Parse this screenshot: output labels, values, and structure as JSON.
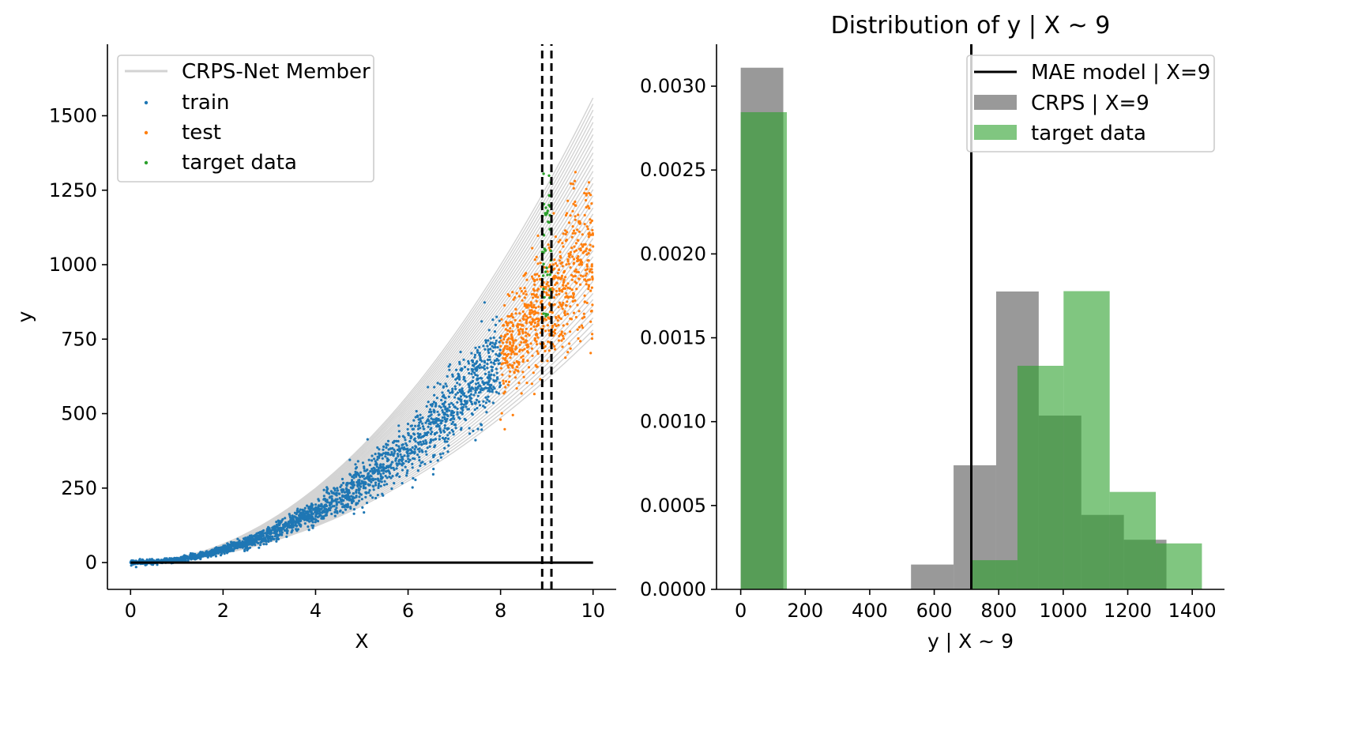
{
  "chart_data": [
    {
      "type": "scatter",
      "xlabel": "X",
      "ylabel": "y",
      "xlim": [
        -0.5,
        10.5
      ],
      "ylim": [
        -90,
        1740
      ],
      "xticks": [
        0,
        2,
        4,
        6,
        8,
        10
      ],
      "yticks": [
        0,
        250,
        500,
        750,
        1000,
        1250,
        1500
      ],
      "grid": false,
      "legend_placement": "upper left",
      "legend": [
        "CRPS-Net Member",
        "train",
        "test",
        "target data"
      ],
      "vlines": {
        "x": [
          8.9,
          9.1
        ],
        "style": "dashed",
        "color": "#000000"
      },
      "series": [
        {
          "name": "train",
          "color": "#1f77b4",
          "x_range": [
            0,
            8
          ],
          "trend": "y ≈ 10.7·x² with spread",
          "approx_points": 4000
        },
        {
          "name": "test",
          "color": "#ff7f0e",
          "x_range": [
            8,
            10
          ],
          "trend": "y ≈ 10.7·x² with spread",
          "approx_points": 1000
        },
        {
          "name": "target data",
          "color": "#2ca02c",
          "x_range": [
            8.9,
            9.1
          ],
          "y_range": [
            820,
            1320
          ]
        },
        {
          "name": "CRPS-Net Member",
          "color": "#d3d3d3",
          "x_range": [
            0,
            10
          ],
          "curve_count": 40,
          "y_at_10_range": [
            760,
            1560
          ]
        }
      ],
      "zero_line": {
        "color": "#000000",
        "y": 0
      }
    },
    {
      "type": "histogram",
      "title": "Distribution of y | X ~ 9",
      "xlabel": "y | X ~ 9",
      "ylabel": "",
      "xlim": [
        -75,
        1500
      ],
      "ylim": [
        0,
        0.00325
      ],
      "xticks": [
        0,
        200,
        400,
        600,
        800,
        1000,
        1200,
        1400
      ],
      "yticks": [
        "0.0000",
        "0.0005",
        "0.0010",
        "0.0015",
        "0.0020",
        "0.0025",
        "0.0030"
      ],
      "grid": false,
      "legend_placement": "upper right",
      "legend": [
        "MAE model | X=9",
        "CRPS | X=9",
        "target data"
      ],
      "vline": {
        "name": "MAE model | X=9",
        "x": 715,
        "color": "#000000"
      },
      "series": [
        {
          "name": "CRPS | X=9",
          "color": "#808080",
          "bins": [
            {
              "x0": 0,
              "x1": 132,
              "value": 0.00311
            },
            {
              "x0": 132,
              "x1": 264,
              "value": 0.0
            },
            {
              "x0": 264,
              "x1": 396,
              "value": 0.0
            },
            {
              "x0": 396,
              "x1": 528,
              "value": 0.0
            },
            {
              "x0": 528,
              "x1": 660,
              "value": 0.000148
            },
            {
              "x0": 660,
              "x1": 792,
              "value": 0.00074
            },
            {
              "x0": 792,
              "x1": 924,
              "value": 0.001776
            },
            {
              "x0": 924,
              "x1": 1056,
              "value": 0.001036
            },
            {
              "x0": 1056,
              "x1": 1188,
              "value": 0.000444
            },
            {
              "x0": 1188,
              "x1": 1320,
              "value": 0.000296
            }
          ]
        },
        {
          "name": "target data",
          "color": "#2ca02c",
          "bins": [
            {
              "x0": 0,
              "x1": 143,
              "value": 0.002845
            },
            {
              "x0": 143,
              "x1": 286,
              "value": 0.0
            },
            {
              "x0": 286,
              "x1": 429,
              "value": 0.0
            },
            {
              "x0": 429,
              "x1": 572,
              "value": 0.0
            },
            {
              "x0": 572,
              "x1": 715,
              "value": 0.0
            },
            {
              "x0": 715,
              "x1": 858,
              "value": 0.000174
            },
            {
              "x0": 858,
              "x1": 1001,
              "value": 0.001333
            },
            {
              "x0": 1001,
              "x1": 1144,
              "value": 0.001778
            },
            {
              "x0": 1144,
              "x1": 1287,
              "value": 0.000581
            },
            {
              "x0": 1287,
              "x1": 1430,
              "value": 0.000274
            }
          ]
        }
      ]
    }
  ]
}
